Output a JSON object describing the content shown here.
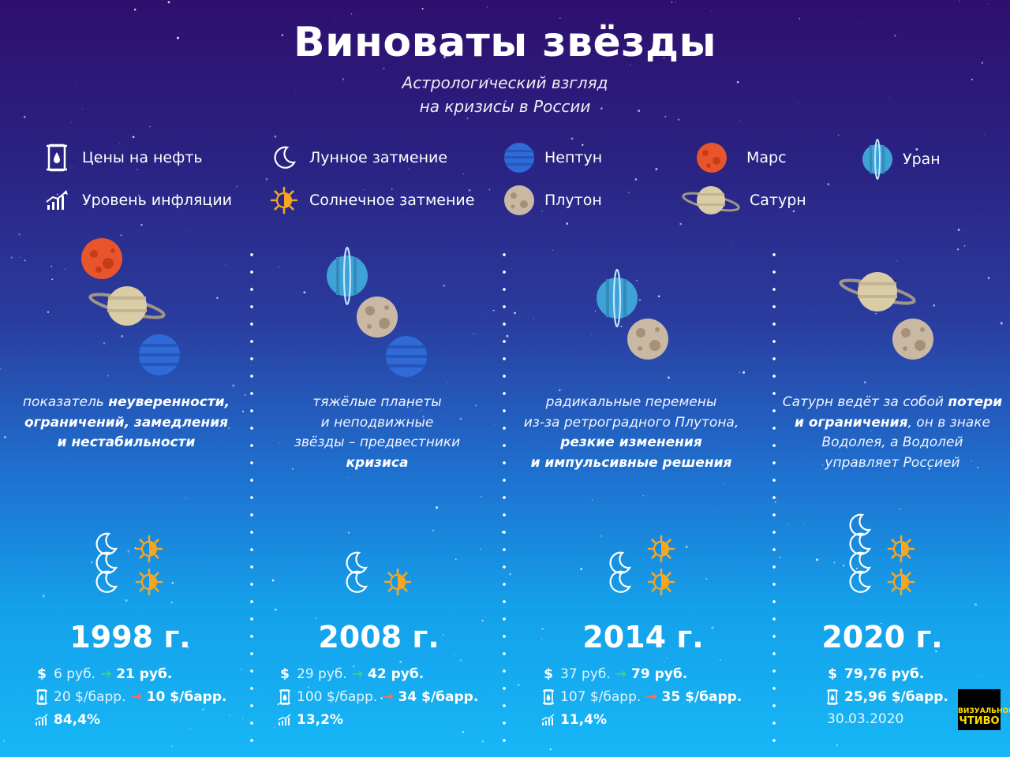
{
  "header": {
    "title": "Виноваты звёзды",
    "subtitle_line1": "Астрологический взгляд",
    "subtitle_line2": "на кризисы в России"
  },
  "legend": {
    "oil": "Цены на нефть",
    "inflation": "Уровень инфляции",
    "lunar": "Лунное затмение",
    "solar": "Солнечное затмение",
    "neptune": "Нептун",
    "pluto": "Плутон",
    "mars": "Марс",
    "saturn": "Сатурн",
    "uranus": "Уран"
  },
  "colors": {
    "mars": "#e8552c",
    "saturn": "#d9cca7",
    "neptune": "#2f6ad6",
    "uranus": "#3fa2d6",
    "pluto": "#c9b8a4",
    "eclipse_orange": "#f5a623",
    "arrow_up": "#40d47e",
    "arrow_down": "#ff6f5e"
  },
  "columns": [
    {
      "year": "1998 г.",
      "desc": [
        "показатель ",
        "неуверенности,",
        "ограничений, замедления",
        "и нестабильности"
      ],
      "rub_old": "6 руб.",
      "rub_new": "21 руб.",
      "oil_old": "20 $/барр.",
      "oil_new": "10 $/барр.",
      "inflation": "84,4%",
      "lunar_count": 3,
      "solar_count": 2
    },
    {
      "year": "2008 г.",
      "desc": [
        "тяжёлые планеты",
        "и неподвижные",
        "звёзды – предвестники",
        "кризиса"
      ],
      "rub_old": "29 руб.",
      "rub_new": "42 руб.",
      "oil_old": "100 $/барр.",
      "oil_new": "34 $/барр.",
      "inflation": "13,2%",
      "lunar_count": 2,
      "solar_count": 1
    },
    {
      "year": "2014 г.",
      "desc": [
        "радикальные перемены",
        "из-за ретроградного Плутона,",
        "резкие изменения",
        "и импульсивные решения"
      ],
      "rub_old": "37 руб.",
      "rub_new": "79 руб.",
      "oil_old": "107 $/барр.",
      "oil_new": "35 $/барр.",
      "inflation": "11,4%",
      "lunar_count": 2,
      "solar_count": 2
    },
    {
      "year": "2020 г.",
      "desc": [
        "Сатурн ведёт за собой ",
        "потери",
        "и ограничения",
        ", он в знаке",
        "Водолея, а Водолей",
        "управляет Россией"
      ],
      "rub_new": "79,76 руб.",
      "oil_new": "25,96 $/барр.",
      "date": "30.03.2020",
      "lunar_count": 4,
      "solar_count": 2
    }
  ],
  "icons": {
    "dollar": "$",
    "arrow": "→"
  },
  "badge": {
    "line1": "ВИЗУАЛЬНОЕ",
    "line2": "ЧТИВО"
  }
}
